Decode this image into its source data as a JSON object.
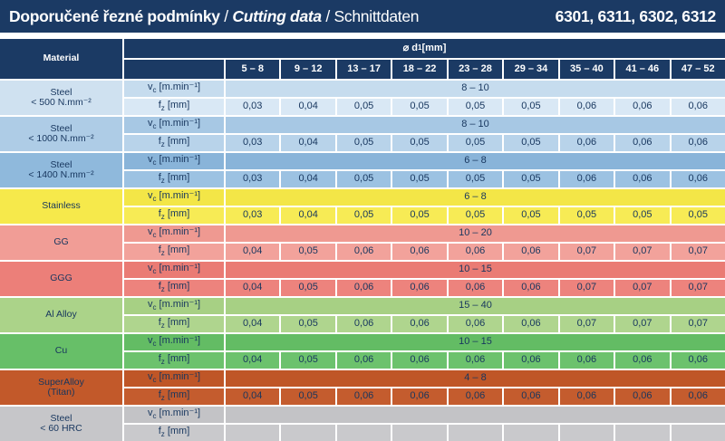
{
  "title": {
    "primary": "Doporučené řezné podmínky",
    "sep1": " / ",
    "secondary": "Cutting data",
    "sep2": " / ",
    "tertiary": "Schnittdaten",
    "codes": "6301, 6311, 6302, 6312"
  },
  "colors": {
    "navy": "#1b3a64",
    "text_navy": "#17365e",
    "grid_line": "#ffffff"
  },
  "table": {
    "material_header": "Material",
    "diameter_header": {
      "pre": "⌀ d",
      "sub": "1",
      "post": " [mm]"
    },
    "diameter_ranges": [
      "5 – 8",
      "9 – 12",
      "13 – 17",
      "18 – 22",
      "23 – 28",
      "29 – 34",
      "35 – 40",
      "41 – 46",
      "47 – 52"
    ],
    "param_vc": {
      "pre": "v",
      "sub": "c",
      "post": " [m.min⁻¹]"
    },
    "param_fz": {
      "pre": "f",
      "sub": "z",
      "post": " [mm]"
    },
    "rows": [
      {
        "material_lines": [
          "Steel",
          "< 500 N.mm⁻²"
        ],
        "vc": "8 – 10",
        "fz": [
          "0,03",
          "0,04",
          "0,05",
          "0,05",
          "0,05",
          "0,05",
          "0,06",
          "0,06",
          "0,06"
        ],
        "colors": {
          "mid": "#cfe1f0",
          "vc": "#c6dcee",
          "fz": "#d9e8f5"
        }
      },
      {
        "material_lines": [
          "Steel",
          "< 1000 N.mm⁻²"
        ],
        "vc": "8 – 10",
        "fz": [
          "0,03",
          "0,04",
          "0,05",
          "0,05",
          "0,05",
          "0,05",
          "0,06",
          "0,06",
          "0,06"
        ],
        "colors": {
          "mid": "#aecce6",
          "vc": "#a7c8e4",
          "fz": "#b8d3ea"
        }
      },
      {
        "material_lines": [
          "Steel",
          "< 1400 N.mm⁻²"
        ],
        "vc": "6 – 8",
        "fz": [
          "0,03",
          "0,04",
          "0,05",
          "0,05",
          "0,05",
          "0,05",
          "0,06",
          "0,06",
          "0,06"
        ],
        "colors": {
          "mid": "#8fb9dc",
          "vc": "#89b4d9",
          "fz": "#9cc2e2"
        }
      },
      {
        "material_lines": [
          "Stainless"
        ],
        "vc": "6 – 8",
        "fz": [
          "0,03",
          "0,04",
          "0,05",
          "0,05",
          "0,05",
          "0,05",
          "0,05",
          "0,05",
          "0,05"
        ],
        "colors": {
          "mid": "#f6e94b",
          "vc": "#f3e647",
          "fz": "#f7eb55"
        }
      },
      {
        "material_lines": [
          "GG"
        ],
        "vc": "10 – 20",
        "fz": [
          "0,04",
          "0,05",
          "0,06",
          "0,06",
          "0,06",
          "0,06",
          "0,07",
          "0,07",
          "0,07"
        ],
        "colors": {
          "mid": "#f19d96",
          "vc": "#ef9991",
          "fz": "#f2a29b"
        }
      },
      {
        "material_lines": [
          "GGG"
        ],
        "vc": "10 – 15",
        "fz": [
          "0,04",
          "0,05",
          "0,06",
          "0,06",
          "0,06",
          "0,06",
          "0,07",
          "0,07",
          "0,07"
        ],
        "colors": {
          "mid": "#ec7f79",
          "vc": "#ea7b74",
          "fz": "#ed837d"
        }
      },
      {
        "material_lines": [
          "Al Alloy"
        ],
        "vc": "15 – 40",
        "fz": [
          "0,04",
          "0,05",
          "0,06",
          "0,06",
          "0,06",
          "0,06",
          "0,07",
          "0,07",
          "0,07"
        ],
        "colors": {
          "mid": "#abd389",
          "vc": "#a7d084",
          "fz": "#afd58e"
        }
      },
      {
        "material_lines": [
          "Cu"
        ],
        "vc": "10 – 15",
        "fz": [
          "0,04",
          "0,05",
          "0,06",
          "0,06",
          "0,06",
          "0,06",
          "0,06",
          "0,06",
          "0,06"
        ],
        "colors": {
          "mid": "#67bf68",
          "vc": "#63bc64",
          "fz": "#6cc26d"
        }
      },
      {
        "material_lines": [
          "SuperAlloy",
          "(Titan)"
        ],
        "vc": "4 – 8",
        "fz": [
          "0,04",
          "0,05",
          "0,06",
          "0,06",
          "0,06",
          "0,06",
          "0,06",
          "0,06",
          "0,06"
        ],
        "colors": {
          "mid": "#c2592a",
          "vc": "#bf5627",
          "fz": "#c45c2e"
        }
      },
      {
        "material_lines": [
          "Steel",
          "< 60 HRC"
        ],
        "vc": "",
        "fz": [
          "",
          "",
          "",
          "",
          "",
          "",
          "",
          "",
          ""
        ],
        "colors": {
          "mid": "#c6c6c9",
          "vc": "#c3c3c6",
          "fz": "#c9c9cc"
        }
      }
    ]
  }
}
